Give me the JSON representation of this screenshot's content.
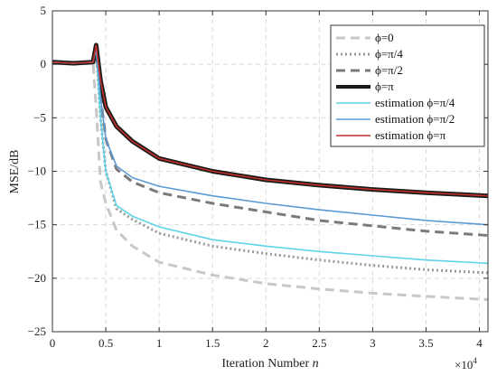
{
  "chart_data": {
    "type": "line",
    "xlabel_text": "Iteration Number",
    "xlabel_var": "n",
    "ylabel": "MSE/dB",
    "x_multiplier_base": "×10",
    "x_multiplier_exp": "4",
    "xlim": [
      0,
      4.08
    ],
    "ylim": [
      -25,
      5
    ],
    "x_ticks": [
      0,
      0.5,
      1,
      1.5,
      2,
      2.5,
      3,
      3.5,
      4
    ],
    "x_tick_labels": [
      "0",
      "0.5",
      "1",
      "1.5",
      "2",
      "2.5",
      "3",
      "3.5",
      "4"
    ],
    "y_ticks": [
      5,
      0,
      -5,
      -10,
      -15,
      -20,
      -25
    ],
    "y_tick_labels": [
      "5",
      "0",
      "−5",
      "−10",
      "−15",
      "−20",
      "−25"
    ],
    "grid": true,
    "legend_position": "top-right",
    "series": [
      {
        "name": "ϕ=0",
        "color": "#c8c8c8",
        "style": "dash",
        "width": 3,
        "x": [
          0,
          0.2,
          0.38,
          0.41,
          0.45,
          0.5,
          0.6,
          0.75,
          1.0,
          1.5,
          2.0,
          2.5,
          3.0,
          3.5,
          4.08
        ],
        "y": [
          0.2,
          0.1,
          0.2,
          -4,
          -11,
          -13,
          -15.5,
          -17,
          -18.5,
          -19.7,
          -20.5,
          -21,
          -21.4,
          -21.7,
          -22
        ]
      },
      {
        "name": "ϕ=π/4",
        "color": "#9a9a9a",
        "style": "dot",
        "width": 3,
        "x": [
          0,
          0.2,
          0.38,
          0.41,
          0.45,
          0.5,
          0.6,
          0.75,
          1.0,
          1.5,
          2.0,
          2.5,
          3.0,
          3.5,
          4.08
        ],
        "y": [
          0.2,
          0.1,
          0.2,
          1.5,
          -5,
          -10,
          -13.5,
          -14.5,
          -15.8,
          -17,
          -17.7,
          -18.3,
          -18.8,
          -19.2,
          -19.5
        ]
      },
      {
        "name": "ϕ=π/2",
        "color": "#7a7a7a",
        "style": "dash",
        "width": 3,
        "x": [
          0,
          0.2,
          0.38,
          0.41,
          0.45,
          0.5,
          0.6,
          0.75,
          1.0,
          1.5,
          2.0,
          2.5,
          3.0,
          3.5,
          4.08
        ],
        "y": [
          0.2,
          0.1,
          0.2,
          1.5,
          -3,
          -7,
          -9.8,
          -11,
          -12,
          -13,
          -13.8,
          -14.6,
          -15.1,
          -15.6,
          -16
        ]
      },
      {
        "name": "ϕ=π",
        "color": "#1a1a1a",
        "style": "solid",
        "width": 5,
        "x": [
          0,
          0.2,
          0.38,
          0.41,
          0.45,
          0.5,
          0.6,
          0.75,
          1.0,
          1.5,
          2.0,
          2.5,
          3.0,
          3.5,
          4.08
        ],
        "y": [
          0.2,
          0.1,
          0.2,
          1.8,
          -1.5,
          -4,
          -5.8,
          -7.2,
          -8.8,
          -10,
          -10.8,
          -11.3,
          -11.7,
          -12,
          -12.3
        ]
      },
      {
        "name": "estimation ϕ=π/4",
        "color": "#5fd3e8",
        "style": "solid",
        "width": 1.6,
        "x": [
          0,
          0.2,
          0.38,
          0.41,
          0.45,
          0.5,
          0.6,
          0.75,
          1.0,
          1.5,
          2.0,
          2.5,
          3.0,
          3.5,
          4.08
        ],
        "y": [
          0.2,
          0.1,
          0.2,
          1.5,
          -5,
          -10,
          -13.2,
          -14.2,
          -15.2,
          -16.4,
          -17,
          -17.5,
          -17.9,
          -18.3,
          -18.6
        ]
      },
      {
        "name": "estimation ϕ=π/2",
        "color": "#5b9bd5",
        "style": "solid",
        "width": 1.6,
        "x": [
          0,
          0.2,
          0.38,
          0.41,
          0.45,
          0.5,
          0.6,
          0.75,
          1.0,
          1.5,
          2.0,
          2.5,
          3.0,
          3.5,
          4.08
        ],
        "y": [
          0.2,
          0.1,
          0.2,
          1.5,
          -3,
          -7,
          -9.5,
          -10.6,
          -11.4,
          -12.3,
          -13,
          -13.6,
          -14.1,
          -14.6,
          -15
        ]
      },
      {
        "name": "estimation ϕ=π",
        "color": "#c0302a",
        "style": "solid",
        "width": 1.6,
        "x": [
          0,
          0.2,
          0.38,
          0.41,
          0.45,
          0.5,
          0.6,
          0.75,
          1.0,
          1.5,
          2.0,
          2.5,
          3.0,
          3.5,
          4.08
        ],
        "y": [
          0.2,
          0.1,
          0.2,
          1.8,
          -1.5,
          -4,
          -5.8,
          -7.2,
          -8.8,
          -10,
          -10.8,
          -11.3,
          -11.7,
          -12,
          -12.3
        ]
      }
    ]
  }
}
